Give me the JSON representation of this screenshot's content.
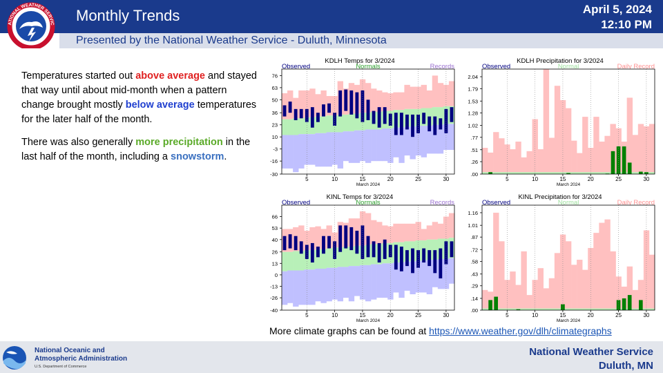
{
  "header": {
    "title": "Monthly Trends",
    "date": "April 5, 2024",
    "time": "12:10 PM",
    "subtitle": "Presented by the National Weather Service - Duluth, Minnesota",
    "logo_text": "NATIONAL WEATHER SERVICE"
  },
  "colors": {
    "header_blue": "#1a3a8c",
    "observed": "#000080",
    "normals_band": "#b8f0b8",
    "records_high": "#ffc0c0",
    "records_low": "#c0c0ff",
    "precip_observed": "#008000",
    "accent_red": "#e02020",
    "accent_blue": "#2040d0",
    "accent_green": "#5aaa28"
  },
  "blurb": {
    "p1_a": "Temperatures started out ",
    "p1_hl1": "above average",
    "p1_b": " and stayed that way until about mid-month when a pattern change brought mostly ",
    "p1_hl2": "below average",
    "p1_c": " temperatures for the later half of the month.",
    "p2_a": "There was also generally ",
    "p2_hl1": "more precipitation",
    "p2_b": " in the last half of the month, including a ",
    "p2_hl2": "snowstorm",
    "p2_c": "."
  },
  "more_info": {
    "text": "More climate graphs can be found at ",
    "link": "https://www.weather.gov/dlh/climategraphs"
  },
  "footer": {
    "noaa_line1": "National Oceanic and",
    "noaa_line2": "Atmospheric Administration",
    "noaa_dept": "U.S. Department of Commerce",
    "nws_line1": "National Weather Service",
    "nws_line2": "Duluth, MN"
  },
  "chart_data": [
    {
      "type": "bar",
      "title": "KDLH Temps for 3/2024",
      "legend": [
        "Observed",
        "Normals",
        "Records"
      ],
      "xlabel": "March 2024",
      "x_ticks": [
        5,
        10,
        15,
        20,
        25,
        30
      ],
      "y_ticks": [
        "-30",
        "-16",
        "-3",
        "10",
        "23",
        "36",
        "50",
        "63",
        "76"
      ],
      "ylim": [
        -30,
        83
      ],
      "days": [
        1,
        2,
        3,
        4,
        5,
        6,
        7,
        8,
        9,
        10,
        11,
        12,
        13,
        14,
        15,
        16,
        17,
        18,
        19,
        20,
        21,
        22,
        23,
        24,
        25,
        26,
        27,
        28,
        29,
        30,
        31
      ],
      "obs_high": [
        44,
        48,
        40,
        40,
        40,
        42,
        36,
        45,
        46,
        36,
        60,
        61,
        60,
        58,
        60,
        50,
        38,
        42,
        42,
        35,
        36,
        36,
        34,
        34,
        34,
        36,
        32,
        32,
        30,
        40,
        42
      ],
      "obs_low": [
        32,
        36,
        28,
        30,
        26,
        20,
        26,
        32,
        36,
        22,
        32,
        38,
        34,
        30,
        26,
        28,
        24,
        20,
        24,
        22,
        12,
        12,
        18,
        10,
        14,
        24,
        16,
        12,
        18,
        14,
        26
      ],
      "normal_high": [
        29,
        29,
        30,
        30,
        31,
        31,
        32,
        32,
        33,
        33,
        34,
        34,
        35,
        35,
        36,
        36,
        37,
        37,
        38,
        38,
        39,
        39,
        40,
        40,
        40,
        41,
        41,
        42,
        42,
        43,
        43
      ],
      "normal_low": [
        12,
        12,
        12,
        13,
        13,
        13,
        14,
        14,
        15,
        15,
        15,
        16,
        16,
        17,
        17,
        18,
        18,
        18,
        19,
        19,
        20,
        20,
        21,
        21,
        22,
        22,
        22,
        23,
        23,
        24,
        24
      ],
      "record_high": [
        57,
        60,
        52,
        60,
        60,
        62,
        56,
        60,
        54,
        54,
        70,
        62,
        68,
        66,
        72,
        68,
        62,
        60,
        58,
        57,
        58,
        58,
        66,
        64,
        64,
        66,
        60,
        76,
        68,
        66,
        70
      ],
      "record_low": [
        -24,
        -24,
        -28,
        -24,
        -20,
        -20,
        -22,
        -22,
        -22,
        -20,
        -24,
        -16,
        -18,
        -18,
        -16,
        -18,
        -16,
        -16,
        -16,
        -18,
        -12,
        -18,
        -10,
        -14,
        -10,
        -12,
        -8,
        -8,
        -8,
        -4,
        -4
      ]
    },
    {
      "type": "bar",
      "title": "KDLH Precipitation for 3/2024",
      "legend": [
        "Observed",
        "Normal",
        "Daily Record"
      ],
      "xlabel": "March 2024",
      "x_ticks": [
        5,
        10,
        15,
        20,
        25,
        30
      ],
      "y_ticks": [
        ".00",
        ".26",
        ".51",
        ".77",
        "1.02",
        "1.28",
        "1.53",
        "1.79",
        "2.04"
      ],
      "ylim": [
        0,
        2.2
      ],
      "days": [
        1,
        2,
        3,
        4,
        5,
        6,
        7,
        8,
        9,
        10,
        11,
        12,
        13,
        14,
        15,
        16,
        17,
        18,
        19,
        20,
        21,
        22,
        23,
        24,
        25,
        26,
        27,
        28,
        29,
        30,
        31
      ],
      "observed": [
        0,
        0.04,
        0,
        0,
        0,
        0,
        0,
        0,
        0,
        0,
        0,
        0,
        0,
        0,
        0,
        0.02,
        0,
        0,
        0,
        0,
        0,
        0,
        0.01,
        0.48,
        0.58,
        0.58,
        0.24,
        0,
        0.05,
        0.04,
        0
      ],
      "normal": [
        0.04,
        0.04,
        0.04,
        0.04,
        0.04,
        0.04,
        0.04,
        0.04,
        0.04,
        0.04,
        0.04,
        0.04,
        0.04,
        0.04,
        0.04,
        0.04,
        0.04,
        0.04,
        0.04,
        0.04,
        0.04,
        0.04,
        0.04,
        0.04,
        0.04,
        0.04,
        0.04,
        0.04,
        0.04,
        0.04,
        0.04
      ],
      "record": [
        0.55,
        0.45,
        0.88,
        0.75,
        0.62,
        0.52,
        0.68,
        0.35,
        0.48,
        1.15,
        0.52,
        2.2,
        0.76,
        1.85,
        1.55,
        1.38,
        0.7,
        0.44,
        1.2,
        0.55,
        1.2,
        0.68,
        0.8,
        1.05,
        0.96,
        0.68,
        1.6,
        0.82,
        1.05,
        1.0,
        1.05
      ]
    },
    {
      "type": "bar",
      "title": "KINL Temps for 3/2024",
      "legend": [
        "Observed",
        "Normals",
        "Records"
      ],
      "xlabel": "March 2024",
      "x_ticks": [
        5,
        10,
        15,
        20,
        25,
        30
      ],
      "y_ticks": [
        "-40",
        "-26",
        "-13",
        "0",
        "13",
        "26",
        "40",
        "53",
        "66"
      ],
      "ylim": [
        -40,
        79
      ],
      "days": [
        1,
        2,
        3,
        4,
        5,
        6,
        7,
        8,
        9,
        10,
        11,
        12,
        13,
        14,
        15,
        16,
        17,
        18,
        19,
        20,
        21,
        22,
        23,
        24,
        25,
        26,
        27,
        28,
        29,
        30,
        31
      ],
      "obs_high": [
        44,
        46,
        44,
        38,
        34,
        36,
        32,
        44,
        44,
        38,
        56,
        56,
        54,
        50,
        56,
        44,
        38,
        36,
        40,
        34,
        34,
        32,
        28,
        30,
        28,
        30,
        28,
        28,
        30,
        38,
        38
      ],
      "obs_low": [
        28,
        30,
        28,
        24,
        18,
        14,
        20,
        24,
        30,
        18,
        26,
        30,
        28,
        24,
        18,
        20,
        20,
        14,
        18,
        20,
        6,
        4,
        10,
        2,
        8,
        14,
        10,
        2,
        -4,
        12,
        20
      ],
      "normal_high": [
        26,
        26,
        27,
        27,
        28,
        28,
        29,
        29,
        30,
        31,
        31,
        32,
        32,
        33,
        33,
        34,
        35,
        35,
        36,
        36,
        37,
        37,
        38,
        38,
        39,
        39,
        40,
        40,
        41,
        41,
        42
      ],
      "normal_low": [
        4,
        5,
        5,
        5,
        6,
        6,
        7,
        7,
        8,
        8,
        9,
        9,
        10,
        10,
        11,
        11,
        12,
        12,
        13,
        13,
        14,
        14,
        15,
        15,
        16,
        16,
        17,
        17,
        18,
        18,
        19
      ],
      "record_high": [
        52,
        52,
        54,
        56,
        50,
        54,
        55,
        52,
        56,
        48,
        60,
        59,
        64,
        64,
        72,
        70,
        62,
        60,
        56,
        55,
        58,
        58,
        58,
        58,
        60,
        52,
        56,
        60,
        58,
        66,
        70
      ],
      "record_low": [
        -34,
        -32,
        -36,
        -34,
        -34,
        -34,
        -30,
        -32,
        -30,
        -28,
        -30,
        -26,
        -30,
        -24,
        -28,
        -30,
        -28,
        -26,
        -26,
        -28,
        -20,
        -26,
        -18,
        -22,
        -20,
        -20,
        -22,
        -14,
        -16,
        -16,
        -10
      ]
    },
    {
      "type": "bar",
      "title": "KINL Precipitation for 3/2024",
      "legend": [
        "Observed",
        "Normal",
        "Daily Record"
      ],
      "xlabel": "March 2024",
      "x_ticks": [
        5,
        10,
        15,
        20,
        25,
        30
      ],
      "y_ticks": [
        ".00",
        ".14",
        ".29",
        ".43",
        ".58",
        ".72",
        ".87",
        "1.01",
        "1.16"
      ],
      "ylim": [
        0,
        1.25
      ],
      "days": [
        1,
        2,
        3,
        4,
        5,
        6,
        7,
        8,
        9,
        10,
        11,
        12,
        13,
        14,
        15,
        16,
        17,
        18,
        19,
        20,
        21,
        22,
        23,
        24,
        25,
        26,
        27,
        28,
        29,
        30,
        31
      ],
      "observed": [
        0,
        0.12,
        0.16,
        0,
        0,
        0,
        0.01,
        0,
        0,
        0,
        0,
        0,
        0,
        0,
        0.07,
        0,
        0,
        0,
        0,
        0,
        0,
        0,
        0,
        0,
        0.12,
        0.14,
        0.18,
        0,
        0.12,
        0,
        0
      ],
      "normal": [
        0.02,
        0.02,
        0.02,
        0.02,
        0.02,
        0.02,
        0.02,
        0.02,
        0.02,
        0.02,
        0.02,
        0.02,
        0.02,
        0.02,
        0.02,
        0.02,
        0.02,
        0.02,
        0.02,
        0.02,
        0.02,
        0.02,
        0.02,
        0.02,
        0.02,
        0.02,
        0.02,
        0.02,
        0.02,
        0.02,
        0.02
      ],
      "record": [
        0.24,
        0.22,
        1.16,
        0.82,
        0.36,
        0.46,
        0.3,
        0.7,
        0.18,
        0.36,
        0.5,
        0.26,
        0.38,
        0.68,
        0.9,
        0.82,
        0.54,
        0.6,
        0.48,
        0.74,
        0.92,
        1.04,
        1.08,
        0.7,
        0.4,
        0.28,
        0.52,
        0.24,
        0.36,
        0.95,
        0.66
      ]
    }
  ]
}
